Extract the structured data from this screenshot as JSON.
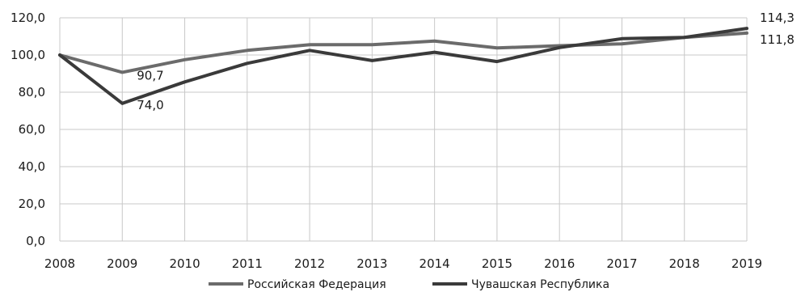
{
  "chart_data": {
    "type": "line",
    "title": "",
    "xlabel": "",
    "ylabel": "",
    "x": [
      "2008",
      "2009",
      "2010",
      "2011",
      "2012",
      "2013",
      "2014",
      "2015",
      "2016",
      "2017",
      "2018",
      "2019"
    ],
    "ylim": [
      0,
      120
    ],
    "y_ticks": [
      "0,0",
      "20,0",
      "40,0",
      "60,0",
      "80,0",
      "100,0",
      "120,0"
    ],
    "grid": "horizontal",
    "legend_position": "bottom",
    "series": [
      {
        "name": "Российская Федерация",
        "color": "#6b6b6b",
        "values": [
          100,
          90.7,
          97.5,
          102.5,
          105.5,
          105.5,
          107.5,
          103.8,
          105,
          106,
          109.5,
          111.8
        ]
      },
      {
        "name": "Чувашская Республика",
        "color": "#3a3a3a",
        "values": [
          100,
          74.0,
          85.5,
          95.5,
          102.5,
          97,
          101.5,
          96.5,
          104,
          108.8,
          109.5,
          114.3
        ]
      }
    ],
    "annotations": [
      {
        "series": 0,
        "index": 1,
        "text": "90,7"
      },
      {
        "series": 1,
        "index": 1,
        "text": "74,0"
      },
      {
        "series": 1,
        "index": 11,
        "text": "114,3"
      },
      {
        "series": 0,
        "index": 11,
        "text": "111,8"
      }
    ]
  }
}
